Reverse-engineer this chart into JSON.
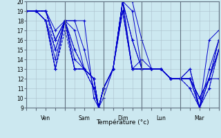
{
  "xlabel": "Température (°c)",
  "bg_color": "#cce8f0",
  "grid_major_color": "#aabfcc",
  "grid_minor_color": "#c0d4dc",
  "line_color": "#0000cc",
  "ylim": [
    9,
    20
  ],
  "yticks": [
    9,
    10,
    11,
    12,
    13,
    14,
    15,
    16,
    17,
    18,
    19,
    20
  ],
  "xlim": [
    0,
    120
  ],
  "day_positions": [
    12,
    36,
    60,
    84,
    108
  ],
  "day_labels": [
    "Ven",
    "Sam",
    "Dim",
    "Lun",
    "Mar"
  ],
  "day_tick_positions": [
    0,
    24,
    48,
    72,
    96,
    120
  ],
  "series": [
    {
      "style": "solid",
      "data": [
        [
          0,
          19
        ],
        [
          6,
          19
        ],
        [
          12,
          19
        ],
        [
          18,
          17
        ],
        [
          24,
          18
        ],
        [
          30,
          18
        ],
        [
          36,
          18
        ],
        [
          42,
          10
        ],
        [
          45,
          9
        ],
        [
          48,
          10
        ],
        [
          54,
          13
        ],
        [
          60,
          20
        ],
        [
          66,
          20
        ],
        [
          72,
          16
        ],
        [
          78,
          13
        ],
        [
          84,
          13
        ],
        [
          90,
          12
        ],
        [
          96,
          12
        ],
        [
          102,
          13
        ],
        [
          108,
          9
        ],
        [
          114,
          16
        ],
        [
          120,
          17
        ]
      ]
    },
    {
      "style": "solid",
      "data": [
        [
          0,
          19
        ],
        [
          6,
          19
        ],
        [
          12,
          19
        ],
        [
          18,
          16
        ],
        [
          24,
          18
        ],
        [
          30,
          18
        ],
        [
          36,
          15
        ],
        [
          42,
          11
        ],
        [
          45,
          9
        ],
        [
          48,
          11
        ],
        [
          54,
          13
        ],
        [
          60,
          20
        ],
        [
          66,
          19
        ],
        [
          72,
          13
        ],
        [
          78,
          13
        ],
        [
          84,
          13
        ],
        [
          90,
          12
        ],
        [
          96,
          12
        ],
        [
          102,
          13
        ],
        [
          108,
          9
        ],
        [
          114,
          13
        ],
        [
          120,
          16
        ]
      ]
    },
    {
      "style": "solid",
      "data": [
        [
          0,
          19
        ],
        [
          6,
          19
        ],
        [
          12,
          19
        ],
        [
          18,
          16
        ],
        [
          24,
          18
        ],
        [
          30,
          17
        ],
        [
          36,
          13
        ],
        [
          42,
          12
        ],
        [
          45,
          9
        ],
        [
          48,
          11
        ],
        [
          54,
          13
        ],
        [
          60,
          20
        ],
        [
          66,
          16
        ],
        [
          72,
          13
        ],
        [
          78,
          13
        ],
        [
          84,
          13
        ],
        [
          90,
          12
        ],
        [
          96,
          12
        ],
        [
          102,
          12
        ],
        [
          108,
          9
        ],
        [
          114,
          12
        ],
        [
          120,
          15
        ]
      ]
    },
    {
      "style": "solid",
      "data": [
        [
          0,
          19
        ],
        [
          6,
          19
        ],
        [
          12,
          18
        ],
        [
          18,
          15
        ],
        [
          24,
          18
        ],
        [
          30,
          15
        ],
        [
          36,
          13
        ],
        [
          42,
          12
        ],
        [
          45,
          9
        ],
        [
          48,
          11
        ],
        [
          54,
          13
        ],
        [
          60,
          20
        ],
        [
          66,
          16
        ],
        [
          72,
          13
        ],
        [
          78,
          13
        ],
        [
          84,
          13
        ],
        [
          90,
          12
        ],
        [
          96,
          12
        ],
        [
          102,
          12
        ],
        [
          108,
          10
        ],
        [
          114,
          12
        ],
        [
          120,
          16
        ]
      ]
    },
    {
      "style": "solid",
      "data": [
        [
          0,
          19
        ],
        [
          6,
          19
        ],
        [
          12,
          18
        ],
        [
          18,
          14
        ],
        [
          24,
          18
        ],
        [
          30,
          14
        ],
        [
          36,
          13
        ],
        [
          42,
          12
        ],
        [
          45,
          9
        ],
        [
          48,
          11
        ],
        [
          54,
          13
        ],
        [
          60,
          20
        ],
        [
          66,
          13
        ],
        [
          72,
          14
        ],
        [
          78,
          13
        ],
        [
          84,
          13
        ],
        [
          90,
          12
        ],
        [
          96,
          12
        ],
        [
          102,
          12
        ],
        [
          108,
          10
        ],
        [
          114,
          12
        ],
        [
          120,
          15
        ]
      ]
    },
    {
      "style": "solid",
      "data": [
        [
          0,
          19
        ],
        [
          6,
          19
        ],
        [
          12,
          18
        ],
        [
          18,
          13
        ],
        [
          24,
          18
        ],
        [
          30,
          13
        ],
        [
          36,
          13
        ],
        [
          42,
          12
        ],
        [
          45,
          9
        ],
        [
          48,
          11
        ],
        [
          54,
          13
        ],
        [
          60,
          20
        ],
        [
          66,
          13
        ],
        [
          72,
          13
        ],
        [
          78,
          13
        ],
        [
          84,
          13
        ],
        [
          90,
          12
        ],
        [
          96,
          12
        ],
        [
          102,
          12
        ],
        [
          108,
          10
        ],
        [
          114,
          12
        ],
        [
          120,
          12
        ]
      ]
    },
    {
      "style": "dashed",
      "data": [
        [
          0,
          19
        ],
        [
          6,
          19
        ],
        [
          12,
          19
        ],
        [
          18,
          16
        ],
        [
          24,
          18
        ],
        [
          30,
          15
        ],
        [
          36,
          13
        ],
        [
          42,
          12
        ],
        [
          45,
          9
        ],
        [
          48,
          11
        ],
        [
          54,
          13
        ],
        [
          60,
          19
        ],
        [
          66,
          13
        ],
        [
          72,
          13
        ],
        [
          78,
          13
        ],
        [
          84,
          13
        ],
        [
          90,
          12
        ],
        [
          96,
          12
        ],
        [
          102,
          12
        ],
        [
          108,
          9
        ],
        [
          114,
          12
        ],
        [
          120,
          16
        ]
      ]
    },
    {
      "style": "dashed",
      "data": [
        [
          0,
          19
        ],
        [
          6,
          19
        ],
        [
          12,
          19
        ],
        [
          18,
          15
        ],
        [
          24,
          18
        ],
        [
          30,
          13
        ],
        [
          36,
          13
        ],
        [
          42,
          11
        ],
        [
          45,
          9
        ],
        [
          48,
          11
        ],
        [
          54,
          13
        ],
        [
          60,
          19
        ],
        [
          66,
          13
        ],
        [
          72,
          13
        ],
        [
          78,
          13
        ],
        [
          84,
          13
        ],
        [
          90,
          12
        ],
        [
          96,
          12
        ],
        [
          102,
          12
        ],
        [
          108,
          9
        ],
        [
          114,
          12
        ],
        [
          120,
          15
        ]
      ]
    },
    {
      "style": "dashed",
      "data": [
        [
          0,
          19
        ],
        [
          6,
          19
        ],
        [
          12,
          18
        ],
        [
          18,
          13
        ],
        [
          24,
          18
        ],
        [
          30,
          13
        ],
        [
          36,
          13
        ],
        [
          42,
          11
        ],
        [
          45,
          9
        ],
        [
          48,
          11
        ],
        [
          54,
          13
        ],
        [
          60,
          19
        ],
        [
          66,
          13
        ],
        [
          72,
          13
        ],
        [
          78,
          13
        ],
        [
          84,
          13
        ],
        [
          90,
          12
        ],
        [
          96,
          12
        ],
        [
          102,
          11
        ],
        [
          108,
          9
        ],
        [
          114,
          11
        ],
        [
          120,
          15
        ]
      ]
    },
    {
      "style": "dashed",
      "data": [
        [
          0,
          19
        ],
        [
          6,
          19
        ],
        [
          12,
          18
        ],
        [
          18,
          13
        ],
        [
          24,
          17
        ],
        [
          30,
          13
        ],
        [
          36,
          13
        ],
        [
          42,
          11
        ],
        [
          45,
          9
        ],
        [
          48,
          11
        ],
        [
          54,
          13
        ],
        [
          60,
          19
        ],
        [
          66,
          13
        ],
        [
          72,
          13
        ],
        [
          78,
          13
        ],
        [
          84,
          13
        ],
        [
          90,
          12
        ],
        [
          96,
          12
        ],
        [
          102,
          11
        ],
        [
          108,
          9
        ],
        [
          114,
          11
        ],
        [
          120,
          15
        ]
      ]
    }
  ]
}
